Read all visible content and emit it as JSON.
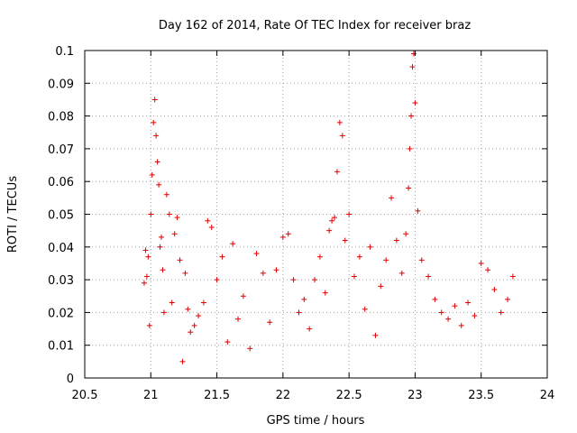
{
  "chart_data": {
    "type": "scatter",
    "title": "Day 162 of 2014, Rate Of TEC Index for receiver braz",
    "xlabel": "GPS time / hours",
    "ylabel": "ROTI / TECUs",
    "xlim": [
      20.5,
      24
    ],
    "ylim": [
      0,
      0.1
    ],
    "x_ticks": [
      20.5,
      21,
      21.5,
      22,
      22.5,
      23,
      23.5,
      24
    ],
    "x_tick_labels": [
      "20.5",
      "21",
      "21.5",
      "22",
      "22.5",
      "23",
      "23.5",
      "24"
    ],
    "y_ticks": [
      0,
      0.01,
      0.02,
      0.03,
      0.04,
      0.05,
      0.06,
      0.07,
      0.08,
      0.09,
      0.1
    ],
    "y_tick_labels": [
      "0",
      "0.01",
      "0.02",
      "0.03",
      "0.04",
      "0.05",
      "0.06",
      "0.07",
      "0.08",
      "0.09",
      "0.1"
    ],
    "grid": true,
    "marker": "+",
    "series": [
      {
        "name": "ROTI",
        "color": "#e00000",
        "x": [
          20.95,
          20.96,
          20.97,
          20.98,
          20.99,
          21.0,
          21.01,
          21.02,
          21.03,
          21.04,
          21.05,
          21.06,
          21.07,
          21.08,
          21.09,
          21.1,
          21.12,
          21.14,
          21.16,
          21.18,
          21.2,
          21.22,
          21.24,
          21.26,
          21.28,
          21.3,
          21.33,
          21.36,
          21.4,
          21.43,
          21.46,
          21.5,
          21.54,
          21.58,
          21.62,
          21.66,
          21.7,
          21.75,
          21.8,
          21.85,
          21.9,
          21.95,
          22.0,
          22.04,
          22.08,
          22.12,
          22.16,
          22.2,
          22.24,
          22.28,
          22.32,
          22.35,
          22.37,
          22.39,
          22.41,
          22.43,
          22.45,
          22.47,
          22.5,
          22.54,
          22.58,
          22.62,
          22.66,
          22.7,
          22.74,
          22.78,
          22.82,
          22.86,
          22.9,
          22.93,
          22.95,
          22.96,
          22.97,
          22.98,
          22.99,
          23.0,
          23.02,
          23.05,
          23.1,
          23.15,
          23.2,
          23.25,
          23.3,
          23.35,
          23.4,
          23.45,
          23.5,
          23.55,
          23.6,
          23.65,
          23.7,
          23.74
        ],
        "y": [
          0.029,
          0.039,
          0.031,
          0.037,
          0.016,
          0.05,
          0.062,
          0.078,
          0.085,
          0.074,
          0.066,
          0.059,
          0.04,
          0.043,
          0.033,
          0.02,
          0.056,
          0.05,
          0.023,
          0.044,
          0.049,
          0.036,
          0.005,
          0.032,
          0.021,
          0.014,
          0.016,
          0.019,
          0.023,
          0.048,
          0.046,
          0.03,
          0.037,
          0.011,
          0.041,
          0.018,
          0.025,
          0.009,
          0.038,
          0.032,
          0.017,
          0.033,
          0.043,
          0.044,
          0.03,
          0.02,
          0.024,
          0.015,
          0.03,
          0.037,
          0.026,
          0.045,
          0.048,
          0.049,
          0.063,
          0.078,
          0.074,
          0.042,
          0.05,
          0.031,
          0.037,
          0.021,
          0.04,
          0.013,
          0.028,
          0.036,
          0.055,
          0.042,
          0.032,
          0.044,
          0.058,
          0.07,
          0.08,
          0.095,
          0.099,
          0.084,
          0.051,
          0.036,
          0.031,
          0.024,
          0.02,
          0.018,
          0.022,
          0.016,
          0.023,
          0.019,
          0.035,
          0.033,
          0.027,
          0.02,
          0.024,
          0.031
        ]
      }
    ]
  }
}
